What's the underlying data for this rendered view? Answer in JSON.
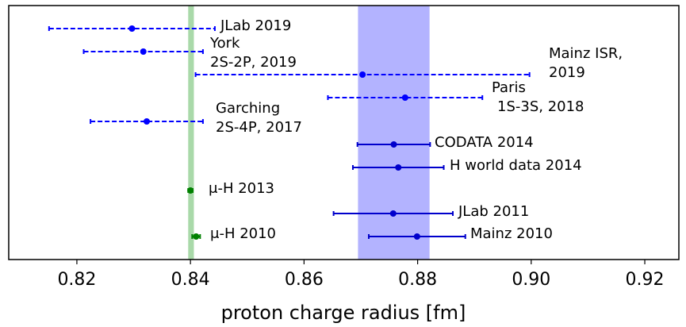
{
  "chart_data": {
    "type": "errorbar",
    "xlabel": "proton charge radius [fm]",
    "xlim": [
      0.808,
      0.926
    ],
    "xticks": [
      0.82,
      0.84,
      0.86,
      0.88,
      {
        "value": 0.9,
        "label": "0.90"
      },
      0.92
    ],
    "grid": false,
    "bands": [
      {
        "xmin": 0.8396,
        "xmax": 0.8406,
        "color": "#a9d9a9"
      },
      {
        "xmin": 0.8695,
        "xmax": 0.8821,
        "color": "#b3b3ff"
      }
    ],
    "points": [
      {
        "label": [
          "JLab 2019"
        ],
        "x": 0.8297,
        "err": 0.0146,
        "color": "#0000ff",
        "dashed": true
      },
      {
        "label": [
          "York",
          "2S-2P, 2019"
        ],
        "x": 0.8317,
        "err": 0.0105,
        "color": "#0000ff",
        "dashed": true
      },
      {
        "label": [
          "Mainz ISR,",
          "2019"
        ],
        "x": 0.8703,
        "err": 0.0294,
        "color": "#0000ff",
        "dashed": true
      },
      {
        "label": [
          "Paris",
          "1S-3S, 2018"
        ],
        "x": 0.8778,
        "err": 0.0136,
        "color": "#0000ff",
        "dashed": true
      },
      {
        "label": [
          "Garching",
          "2S-4P, 2017"
        ],
        "x": 0.8323,
        "err": 0.0099,
        "color": "#0000ff",
        "dashed": true
      },
      {
        "label": [
          "CODATA 2014"
        ],
        "x": 0.8758,
        "err": 0.0064,
        "color": "#0000cc",
        "dashed": false
      },
      {
        "label": [
          "H world data 2014"
        ],
        "x": 0.8766,
        "err": 0.008,
        "color": "#0000cc",
        "dashed": false
      },
      {
        "label": [
          "μ-H 2013"
        ],
        "x": 0.84,
        "err": 0.0004,
        "color": "#008000",
        "dashed": false
      },
      {
        "label": [
          "JLab 2011"
        ],
        "x": 0.8757,
        "err": 0.0105,
        "color": "#0000cc",
        "dashed": false
      },
      {
        "label": [
          "Mainz 2010"
        ],
        "x": 0.8799,
        "err": 0.0085,
        "color": "#0000cc",
        "dashed": false
      },
      {
        "label": [
          "μ-H 2010"
        ],
        "x": 0.841,
        "err": 0.0007,
        "color": "#008000",
        "dashed": false
      }
    ]
  }
}
